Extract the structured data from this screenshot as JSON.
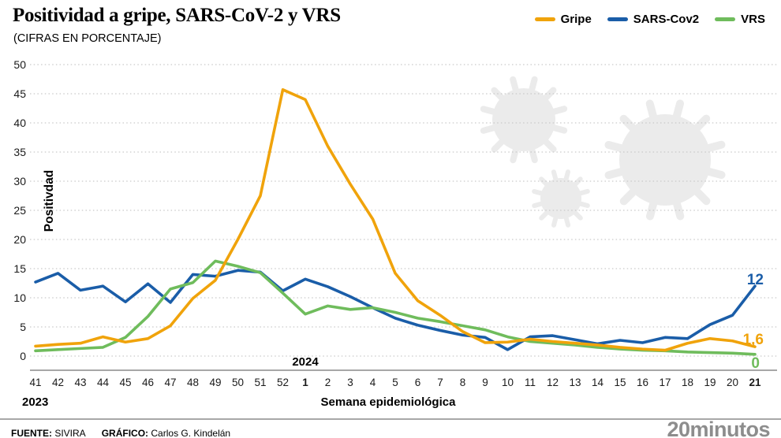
{
  "header": {
    "title": "Positividad a gripe, SARS-CoV-2 y VRS",
    "subtitle": "(CIFRAS EN PORCENTAJE)"
  },
  "legend": [
    {
      "label": "Gripe",
      "color": "#F0A30B"
    },
    {
      "label": "SARS-Cov2",
      "color": "#1A5DA8"
    },
    {
      "label": "VRS",
      "color": "#6FBC5C"
    }
  ],
  "chart_data": {
    "type": "line",
    "title": "Positividad a gripe, SARS-CoV-2 y VRS",
    "subtitle": "(CIFRAS EN PORCENTAJE)",
    "xlabel": "Semana epidemiológica",
    "ylabel": "Positivdad",
    "ylim": [
      0,
      50
    ],
    "yticks": [
      0,
      5,
      10,
      15,
      20,
      25,
      30,
      35,
      40,
      45,
      50
    ],
    "grid": "horizontal-dotted",
    "legend_position": "top-right",
    "categories": [
      "41",
      "42",
      "43",
      "44",
      "45",
      "46",
      "47",
      "48",
      "49",
      "50",
      "51",
      "52",
      "1",
      "2",
      "3",
      "4",
      "5",
      "6",
      "7",
      "8",
      "9",
      "10",
      "11",
      "12",
      "13",
      "14",
      "15",
      "16",
      "17",
      "18",
      "19",
      "20",
      "21"
    ],
    "bold_categories": [
      "1",
      "21"
    ],
    "year_start_label": "2023",
    "year_marker": {
      "label": "2024",
      "at_category": "1"
    },
    "series": [
      {
        "name": "Gripe",
        "color": "#F0A30B",
        "end_label": "1,6",
        "values": [
          1.7,
          2.0,
          2.2,
          3.3,
          2.4,
          3.0,
          5.2,
          9.9,
          13.0,
          20.0,
          27.5,
          45.7,
          44.0,
          36.0,
          29.5,
          23.5,
          14.2,
          9.5,
          7.0,
          4.2,
          2.3,
          2.4,
          2.9,
          2.5,
          2.2,
          1.9,
          1.5,
          1.2,
          1.0,
          2.2,
          3.0,
          2.6,
          1.6
        ]
      },
      {
        "name": "SARS-Cov2",
        "color": "#1A5DA8",
        "end_label": "12",
        "values": [
          12.7,
          14.2,
          11.3,
          12.0,
          9.3,
          12.4,
          9.2,
          14.0,
          13.7,
          14.7,
          14.4,
          11.2,
          13.2,
          11.9,
          10.2,
          8.3,
          6.5,
          5.3,
          4.4,
          3.6,
          3.2,
          1.1,
          3.3,
          3.5,
          2.8,
          2.1,
          2.7,
          2.3,
          3.2,
          3.0,
          5.4,
          7.0,
          12.0
        ]
      },
      {
        "name": "VRS",
        "color": "#6FBC5C",
        "end_label": "0",
        "values": [
          0.9,
          1.1,
          1.3,
          1.5,
          3.2,
          6.8,
          11.5,
          12.6,
          16.3,
          15.4,
          14.3,
          10.8,
          7.2,
          8.6,
          8.0,
          8.3,
          7.5,
          6.5,
          5.9,
          5.2,
          4.5,
          3.3,
          2.5,
          2.2,
          1.9,
          1.5,
          1.2,
          1.0,
          0.9,
          0.7,
          0.6,
          0.5,
          0.3
        ]
      }
    ]
  },
  "footer": {
    "source_label": "FUENTE:",
    "source": "SIVIRA",
    "credit_label": "GRÁFICO:",
    "credit": "Carlos G. Kindelán",
    "logo": "20minutos"
  }
}
